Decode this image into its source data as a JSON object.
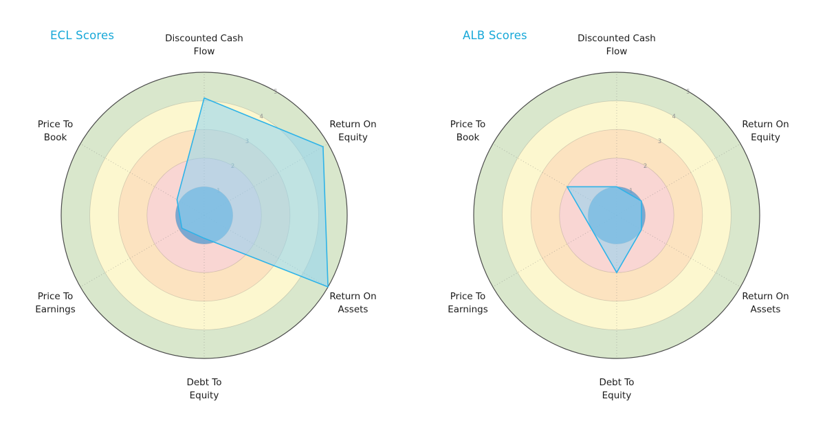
{
  "page": {
    "background": "#ffffff"
  },
  "style": {
    "title_color": "#18a8d8",
    "label_color": "#1a1a1a",
    "tick_color": "#8f8f8f",
    "outer_ring_color": "#4a4a4a",
    "grid_ring_color": "rgba(110,110,110,0.28)",
    "spoke_color": "rgba(120,120,120,0.55)",
    "series_fill": "#8ed4f2",
    "series_fill_opacity": 0.55,
    "series_stroke": "#2eb3e8",
    "center_circle_fill": "#64a0d0",
    "center_circle_opacity": 0.85
  },
  "chart_data": [
    {
      "type": "radar",
      "title": "ECL Scores",
      "categories": [
        "Discounted Cash Flow",
        "Return On Equity",
        "Return On Assets",
        "Debt To Equity",
        "Price To Earnings",
        "Price To Book"
      ],
      "category_label_lines": [
        [
          "Discounted Cash",
          "Flow"
        ],
        [
          "Return On",
          "Equity"
        ],
        [
          "Return On",
          "Assets"
        ],
        [
          "Debt To",
          "Equity"
        ],
        [
          "Price To",
          "Earnings"
        ],
        [
          "Price To",
          "Book"
        ]
      ],
      "values": [
        4.1,
        4.8,
        5.0,
        0.8,
        0.9,
        1.1
      ],
      "rlim": [
        0,
        5
      ],
      "rticks": [
        1,
        2,
        3,
        4,
        5
      ],
      "reference_circle_radius": 1,
      "bands": [
        {
          "from": 0,
          "to": 2,
          "color": "#f9d6d3"
        },
        {
          "from": 2,
          "to": 3,
          "color": "#fce3c0"
        },
        {
          "from": 3,
          "to": 4,
          "color": "#fcf7cf"
        },
        {
          "from": 4,
          "to": 5,
          "color": "#d9e7cc"
        }
      ],
      "grid": true,
      "legend": "none"
    },
    {
      "type": "radar",
      "title": "ALB Scores",
      "categories": [
        "Discounted Cash Flow",
        "Return On Equity",
        "Return On Assets",
        "Debt To Equity",
        "Price To Earnings",
        "Price To Book"
      ],
      "category_label_lines": [
        [
          "Discounted Cash",
          "Flow"
        ],
        [
          "Return On",
          "Equity"
        ],
        [
          "Return On",
          "Assets"
        ],
        [
          "Debt To",
          "Equity"
        ],
        [
          "Price To",
          "Earnings"
        ],
        [
          "Price To",
          "Book"
        ]
      ],
      "values": [
        1.0,
        1.0,
        1.0,
        2.0,
        1.0,
        2.0
      ],
      "rlim": [
        0,
        5
      ],
      "rticks": [
        1,
        2,
        3,
        4,
        5
      ],
      "reference_circle_radius": 1,
      "bands": [
        {
          "from": 0,
          "to": 2,
          "color": "#f9d6d3"
        },
        {
          "from": 2,
          "to": 3,
          "color": "#fce3c0"
        },
        {
          "from": 3,
          "to": 4,
          "color": "#fcf7cf"
        },
        {
          "from": 4,
          "to": 5,
          "color": "#d9e7cc"
        }
      ],
      "grid": true,
      "legend": "none"
    }
  ]
}
